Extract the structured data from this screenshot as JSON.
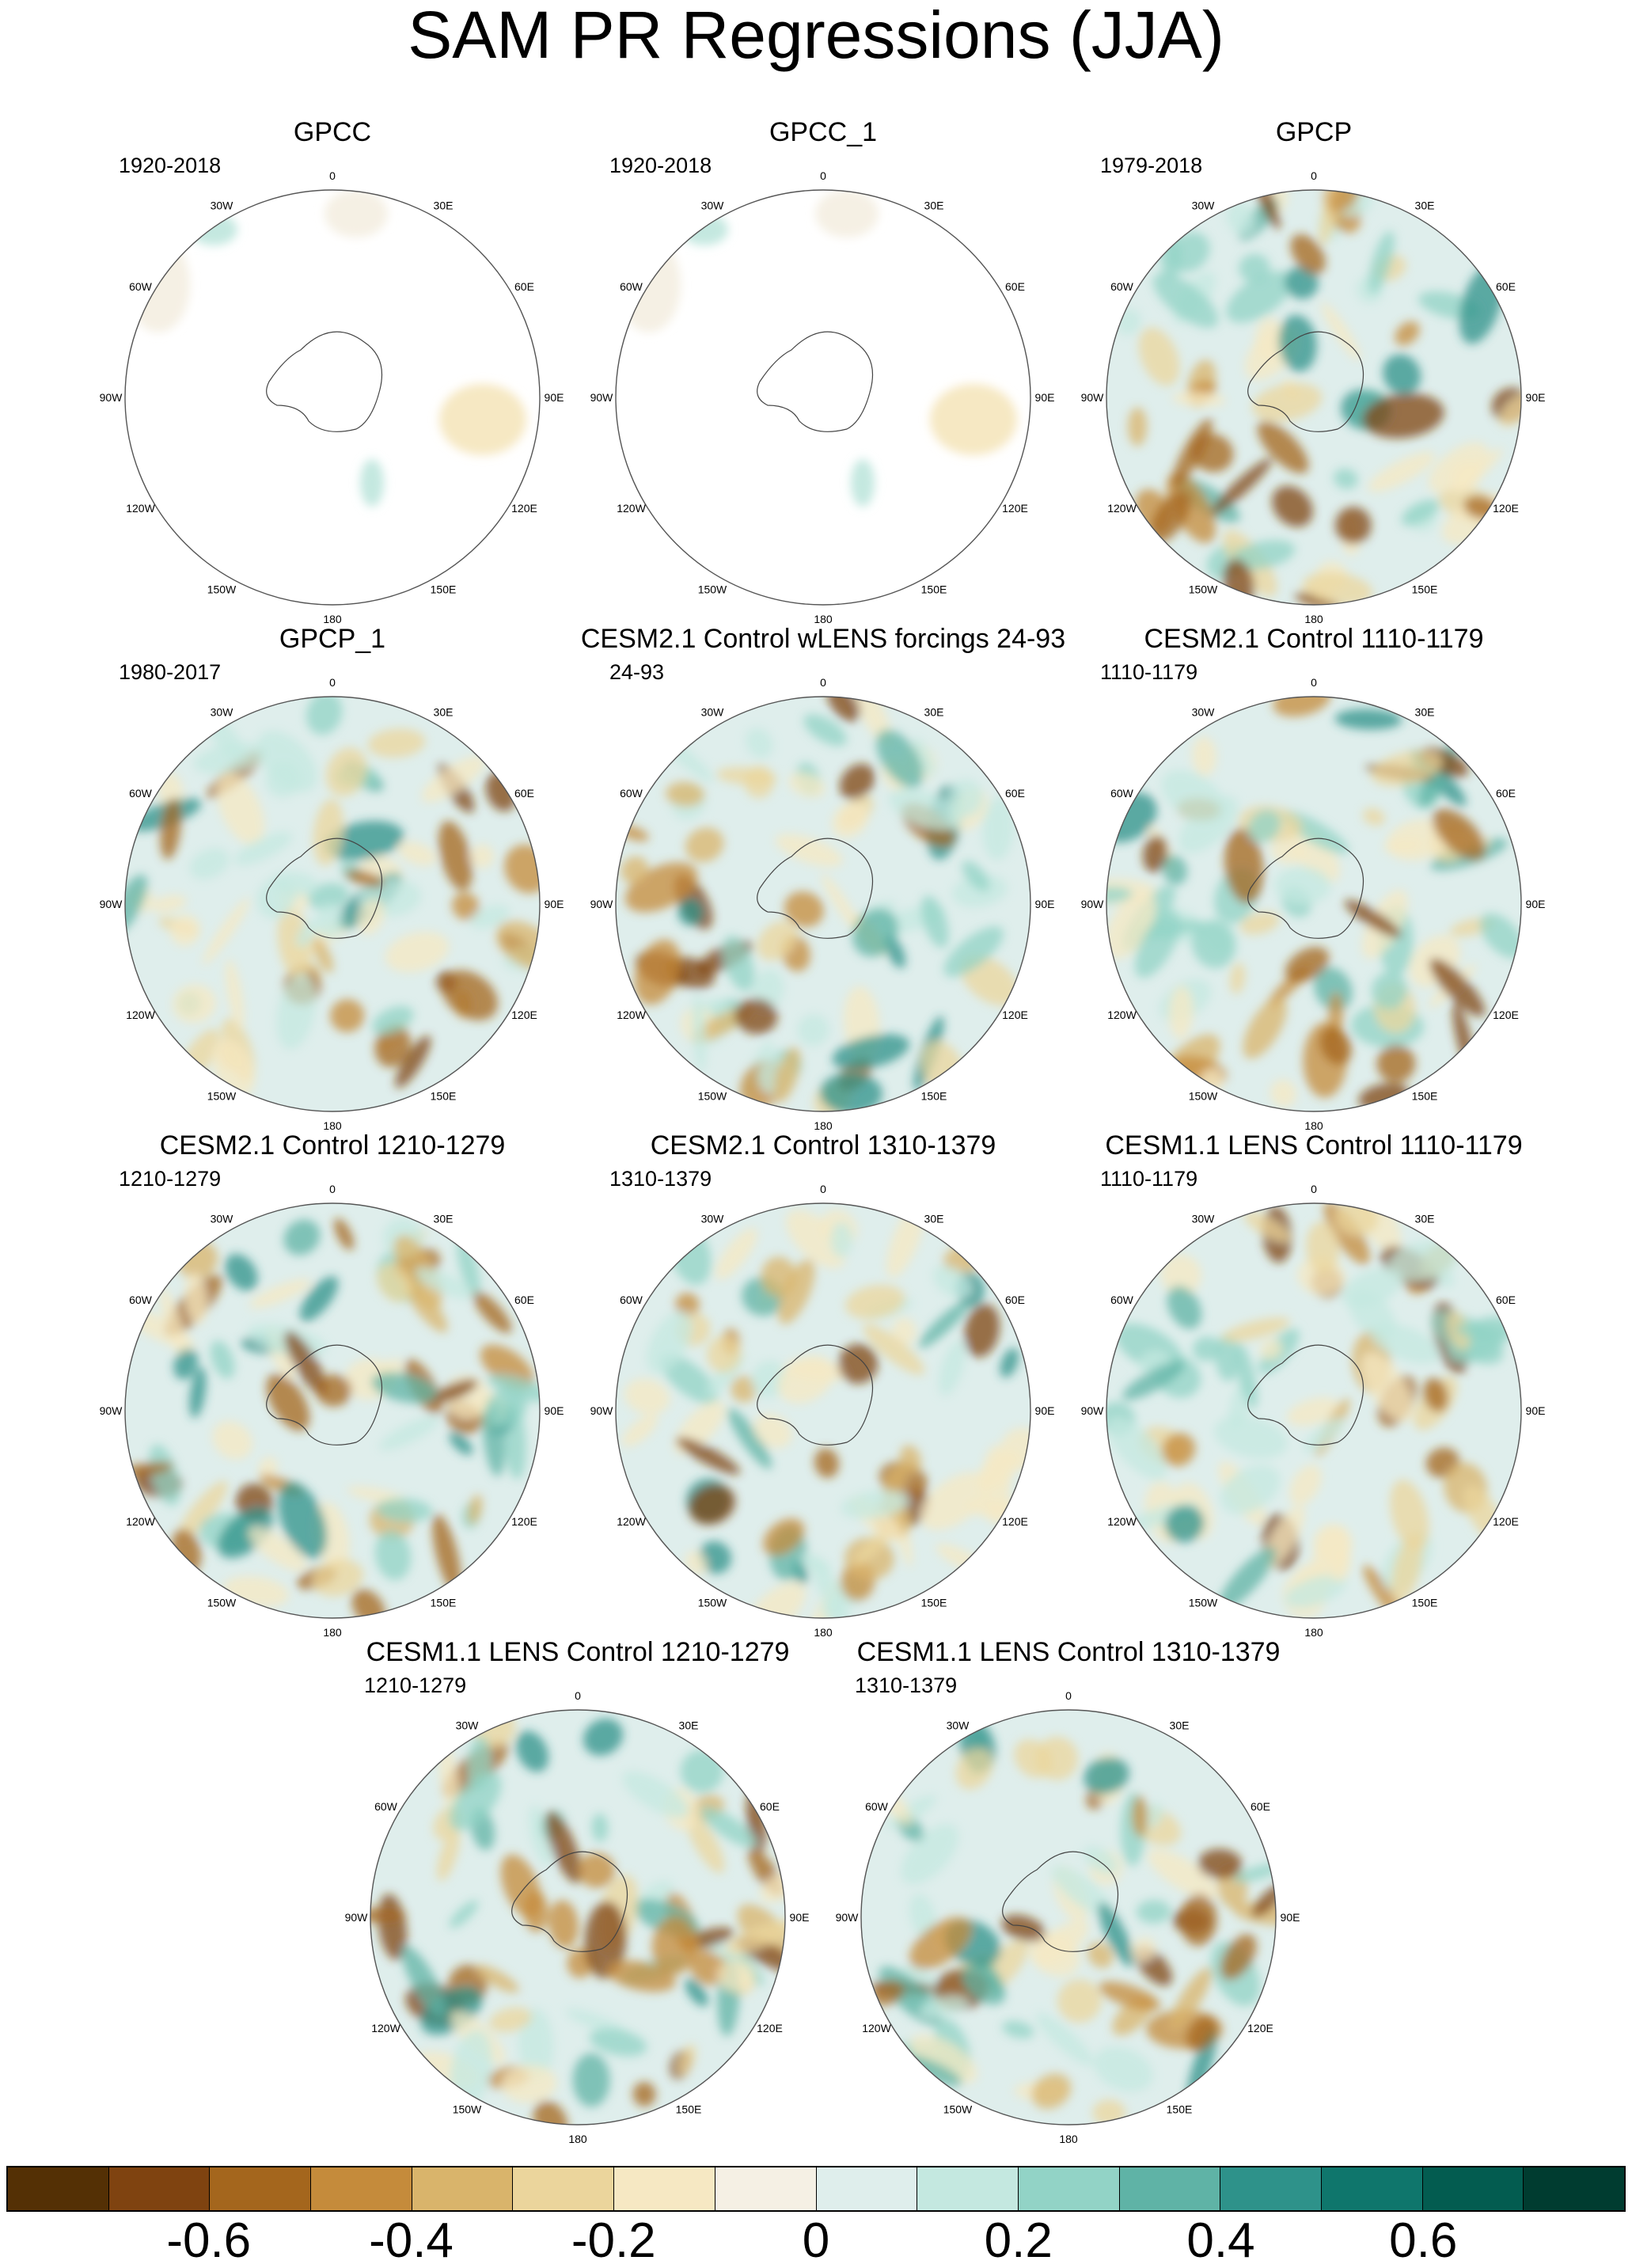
{
  "title": "SAM PR Regressions (JJA)",
  "panels": [
    {
      "title": "GPCC",
      "period": "1920-2018",
      "coverage": "sparse",
      "seed": 3
    },
    {
      "title": "GPCC_1",
      "period": "1920-2018",
      "coverage": "sparse",
      "seed": 5
    },
    {
      "title": "GPCP",
      "period": "1979-2018",
      "coverage": "full",
      "seed": 11
    },
    {
      "title": "GPCP_1",
      "period": "1980-2017",
      "coverage": "full",
      "seed": 17
    },
    {
      "title": "CESM2.1 Control wLENS forcings 24-93",
      "period": "24-93",
      "coverage": "full",
      "seed": 23
    },
    {
      "title": "CESM2.1 Control 1110-1179",
      "period": "1110-1179",
      "coverage": "full",
      "seed": 29
    },
    {
      "title": "CESM2.1 Control 1210-1279",
      "period": "1210-1279",
      "coverage": "full",
      "seed": 31
    },
    {
      "title": "CESM2.1 Control 1310-1379",
      "period": "1310-1379",
      "coverage": "full",
      "seed": 37
    },
    {
      "title": "CESM1.1 LENS Control 1110-1179",
      "period": "1110-1179",
      "coverage": "full",
      "seed": 41
    },
    {
      "title": "CESM1.1 LENS Control 1210-1279",
      "period": "1210-1279",
      "coverage": "full",
      "seed": 43
    },
    {
      "title": "CESM1.1 LENS Control 1310-1379",
      "period": "1310-1379",
      "coverage": "full",
      "seed": 47
    }
  ],
  "longitude_labels": [
    "0",
    "30E",
    "60E",
    "90E",
    "120E",
    "150E",
    "180",
    "150W",
    "120W",
    "90W",
    "60W",
    "30W"
  ],
  "colorbar": {
    "colors": [
      "#543005",
      "#7f4310",
      "#a4661d",
      "#c58b3b",
      "#d9b46b",
      "#ebd59c",
      "#f6e8c3",
      "#f5f0e4",
      "#dfeeec",
      "#c4e8e0",
      "#92d3c6",
      "#5fb3a6",
      "#2e928a",
      "#0f766c",
      "#035c50",
      "#003c30"
    ],
    "tick_labels": [
      "-0.6",
      "-0.4",
      "-0.2",
      "0",
      "0.2",
      "0.4",
      "0.6"
    ]
  }
}
